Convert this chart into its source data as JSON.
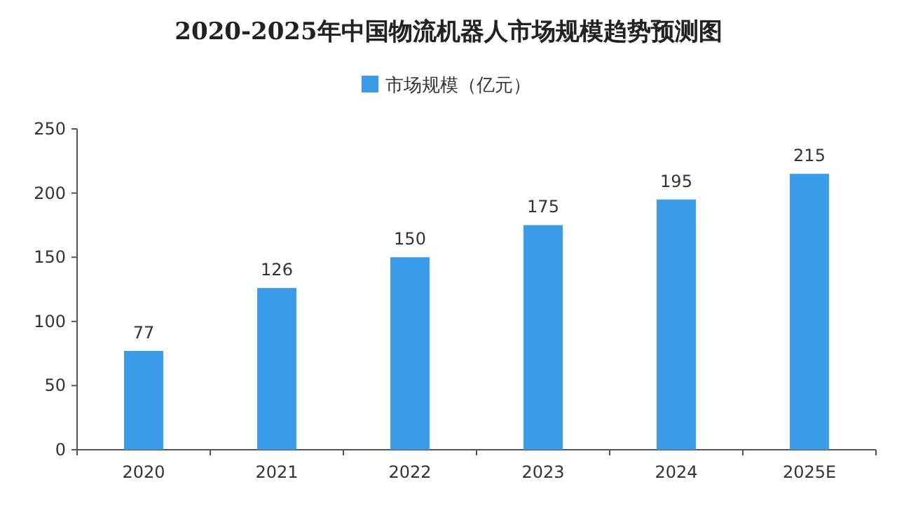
{
  "chart_data": {
    "type": "bar",
    "title": "2020-2025年中国物流机器人市场规模趋势预测图",
    "categories": [
      "2020",
      "2021",
      "2022",
      "2023",
      "2024",
      "2025E"
    ],
    "series": [
      {
        "name": "市场规模（亿元）",
        "color": "#3a9bea",
        "values": [
          77,
          126,
          150,
          175,
          195,
          215
        ]
      }
    ],
    "ylim": [
      0,
      250
    ],
    "yticks": [
      0,
      50,
      100,
      150,
      200,
      250
    ],
    "data_labels": true,
    "legend": "top"
  }
}
